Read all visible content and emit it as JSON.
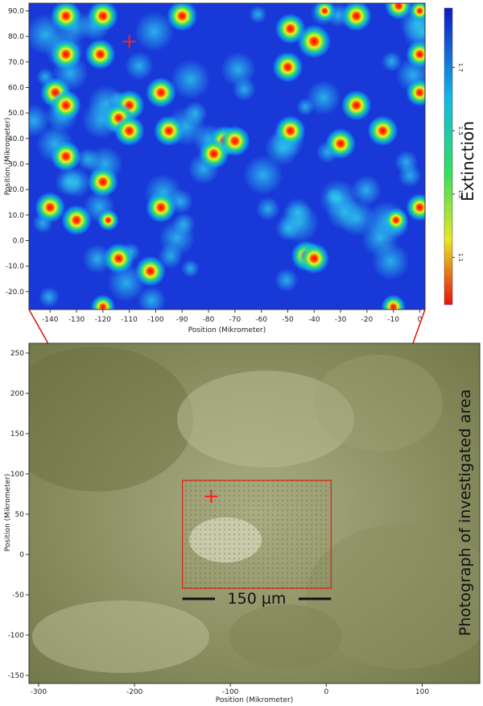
{
  "chart_data": [
    {
      "type": "heatmap",
      "title": "",
      "xlabel": "Position (Mikrometer)",
      "ylabel": "Position (Mikrometer)",
      "xlim": [
        -148,
        2
      ],
      "ylim": [
        -27,
        93
      ],
      "xticks": [
        -140,
        -130,
        -120,
        -110,
        -100,
        -90,
        -80,
        -70,
        -60,
        -50,
        -40,
        -30,
        -20,
        -10,
        0
      ],
      "yticks": [
        -20,
        -10,
        0,
        10,
        20,
        30,
        40,
        50,
        60,
        70,
        80,
        90
      ],
      "ytick_labels": [
        "-20.0",
        "-10.0",
        "0.0",
        "10.0",
        "20.0",
        "30.0",
        "40.0",
        "50.0",
        "60.0",
        "70.0",
        "80.0",
        "90.0"
      ],
      "colorbar": {
        "label": "Extinction",
        "tick_labels": [
          "1.7",
          "1.5",
          "1.3",
          "1.1"
        ],
        "colors": [
          "#1018c8",
          "#10b8e8",
          "#30e060",
          "#e8e820",
          "#e81010"
        ]
      },
      "marker": {
        "symbol": "+",
        "x": -110,
        "y": 78,
        "color": "#ff2020"
      },
      "hot_spots": [
        {
          "x": -134,
          "y": 88,
          "w": 1
        },
        {
          "x": -120,
          "y": 88,
          "w": 1
        },
        {
          "x": -90,
          "y": 88,
          "w": 1
        },
        {
          "x": -24,
          "y": 88,
          "w": 1
        },
        {
          "x": -8,
          "y": 92,
          "w": 0.9
        },
        {
          "x": -36,
          "y": 90,
          "w": 0.7
        },
        {
          "x": 0,
          "y": 90,
          "w": 0.7
        },
        {
          "x": -49,
          "y": 83,
          "w": 1
        },
        {
          "x": -40,
          "y": 78,
          "w": 1.1
        },
        {
          "x": -134,
          "y": 73,
          "w": 1
        },
        {
          "x": -121,
          "y": 73,
          "w": 1
        },
        {
          "x": -50,
          "y": 68,
          "w": 1
        },
        {
          "x": 0,
          "y": 73,
          "w": 0.9
        },
        {
          "x": -138,
          "y": 58,
          "w": 1
        },
        {
          "x": -134,
          "y": 53,
          "w": 1
        },
        {
          "x": -98,
          "y": 58,
          "w": 1
        },
        {
          "x": -110,
          "y": 53,
          "w": 1
        },
        {
          "x": -114,
          "y": 48,
          "w": 1
        },
        {
          "x": -110,
          "y": 43,
          "w": 1
        },
        {
          "x": -95,
          "y": 43,
          "w": 1
        },
        {
          "x": -24,
          "y": 53,
          "w": 1
        },
        {
          "x": 0,
          "y": 58,
          "w": 0.9
        },
        {
          "x": -49,
          "y": 43,
          "w": 1
        },
        {
          "x": -14,
          "y": 43,
          "w": 1
        },
        {
          "x": -30,
          "y": 38,
          "w": 1
        },
        {
          "x": -74,
          "y": 39,
          "w": 1
        },
        {
          "x": -70,
          "y": 39,
          "w": 1
        },
        {
          "x": -78,
          "y": 34,
          "w": 1
        },
        {
          "x": -134,
          "y": 33,
          "w": 1
        },
        {
          "x": -120,
          "y": 23,
          "w": 1
        },
        {
          "x": -140,
          "y": 13,
          "w": 1
        },
        {
          "x": -130,
          "y": 8,
          "w": 1
        },
        {
          "x": -98,
          "y": 13,
          "w": 1
        },
        {
          "x": -118,
          "y": 8,
          "w": 0.7
        },
        {
          "x": -9,
          "y": 8,
          "w": 0.8
        },
        {
          "x": 0,
          "y": 13,
          "w": 0.9
        },
        {
          "x": -114,
          "y": -7,
          "w": 1
        },
        {
          "x": -102,
          "y": -12,
          "w": 1
        },
        {
          "x": -43,
          "y": -6,
          "w": 1
        },
        {
          "x": -40,
          "y": -7,
          "w": 1
        },
        {
          "x": -120,
          "y": -26,
          "w": 0.8
        },
        {
          "x": -10,
          "y": -26,
          "w": 0.8
        }
      ]
    },
    {
      "type": "image",
      "xlabel": "Position (Mikrometer)",
      "ylabel": "Position (Mikrometer)",
      "xlim": [
        -310,
        160
      ],
      "ylim": [
        -160,
        262
      ],
      "xticks": [
        -300,
        -200,
        -100,
        0,
        100
      ],
      "yticks": [
        -150,
        -100,
        -50,
        0,
        50,
        100,
        150,
        200,
        250
      ],
      "investigated_area": {
        "x0": -150,
        "x1": 5,
        "y0": -42,
        "y1": 92
      },
      "marker": {
        "symbol": "+",
        "x": -120,
        "y": 72,
        "color": "#ff2020"
      },
      "scale_bar": {
        "label": "150 µm",
        "x0": -150,
        "x1": 5,
        "y": -55
      },
      "side_label": "Photograph of investigated area"
    }
  ]
}
